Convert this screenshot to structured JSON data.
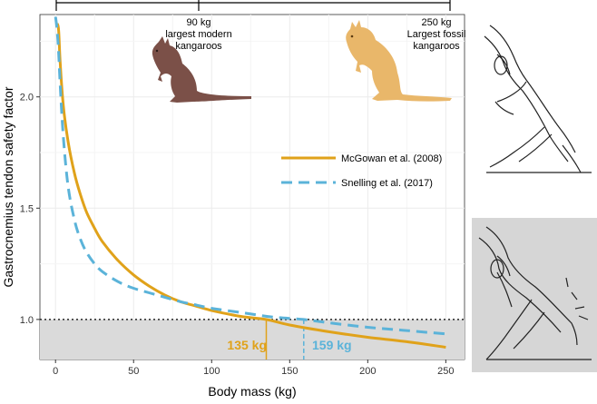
{
  "chart_data": {
    "type": "line",
    "xlabel": "Body mass (kg)",
    "ylabel": "Gastrocnemius tendon safety factor",
    "xlim": [
      -10,
      262
    ],
    "ylim": [
      0.82,
      2.37
    ],
    "x_ticks": [
      0,
      50,
      100,
      150,
      200,
      250
    ],
    "y_ticks": [
      1.0,
      1.5,
      2.0
    ],
    "y_tick_labels": [
      "1.0",
      "1.5",
      "2.0"
    ],
    "grid": true,
    "legend_position": "center-right",
    "reference_line": {
      "y": 1.0,
      "style": "dotted"
    },
    "shaded_region_below": 1.0,
    "series": [
      {
        "name": "McGowan et al. (2008)",
        "color": "#E0A21A",
        "style": "solid",
        "x": [
          1,
          2,
          3,
          5,
          8,
          12,
          16,
          20,
          25,
          30,
          40,
          50,
          60,
          70,
          80,
          90,
          100,
          110,
          120,
          135,
          150,
          175,
          200,
          225,
          250
        ],
        "y": [
          2.33,
          2.3,
          2.15,
          1.96,
          1.8,
          1.66,
          1.56,
          1.48,
          1.41,
          1.35,
          1.265,
          1.2,
          1.15,
          1.11,
          1.08,
          1.06,
          1.04,
          1.025,
          1.012,
          1.0,
          0.975,
          0.945,
          0.92,
          0.9,
          0.875
        ]
      },
      {
        "name": "Snelling et al. (2017)",
        "color": "#5BB3D9",
        "style": "dashed",
        "x": [
          0,
          1,
          2,
          3,
          5,
          8,
          12,
          16,
          20,
          25,
          30,
          40,
          50,
          60,
          70,
          80,
          90,
          100,
          120,
          140,
          159,
          175,
          200,
          225,
          250
        ],
        "y": [
          2.36,
          2.3,
          2.2,
          2.05,
          1.82,
          1.6,
          1.45,
          1.36,
          1.3,
          1.25,
          1.215,
          1.17,
          1.14,
          1.12,
          1.1,
          1.08,
          1.065,
          1.05,
          1.03,
          1.01,
          1.0,
          0.985,
          0.965,
          0.95,
          0.935
        ]
      }
    ],
    "annotations": [
      {
        "text": "135 kg",
        "x": 135,
        "color": "#E0A21A"
      },
      {
        "text": "159 kg",
        "x": 159,
        "color": "#5BB3D9"
      },
      {
        "text_lines": [
          "90 kg",
          "largest modern",
          "kangaroos"
        ],
        "x": 90
      },
      {
        "text_lines": [
          "250 kg",
          "Largest fossil",
          "kangaroos"
        ],
        "x": 250
      }
    ]
  },
  "colors": {
    "mcgowan": "#E0A21A",
    "snelling": "#5BB3D9",
    "shade": "#DADADA",
    "grid": "#EBEBEB",
    "modern_kangaroo": "#7B5048",
    "fossil_kangaroo": "#E9B76A"
  },
  "icons": {
    "modern_kangaroo": "kangaroo-modern-illustration",
    "fossil_kangaroo": "kangaroo-fossil-illustration",
    "leg_upright": "leg-anatomy-upright-illustration",
    "leg_crouched": "leg-anatomy-crouched-illustration"
  }
}
